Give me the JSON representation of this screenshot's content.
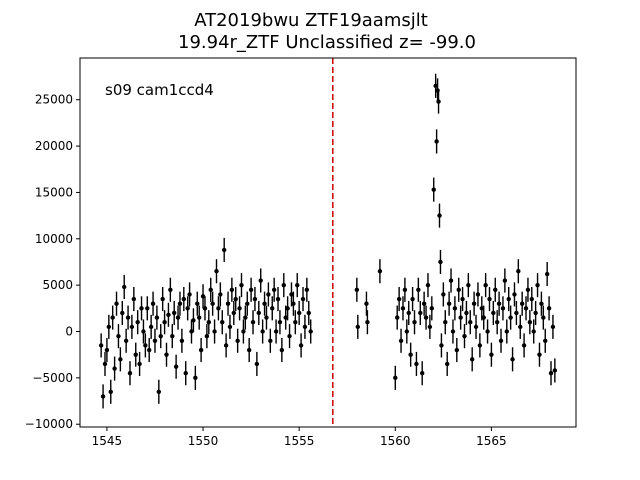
{
  "chart_data": {
    "type": "scatter",
    "title": "AT2019bwu  ZTF19aamsjlt",
    "subtitle": "19.94r_ZTF Unclassified z= -99.0",
    "annotation": "s09 cam1ccd4",
    "xlabel": "",
    "ylabel": "",
    "xlim": [
      1543.6,
      1569.4
    ],
    "ylim": [
      -10300,
      29500
    ],
    "xticks": [
      1545,
      1550,
      1555,
      1560,
      1565
    ],
    "xtick_labels": [
      "1545",
      "1550",
      "1555",
      "1560",
      "1565"
    ],
    "yticks": [
      -10000,
      -5000,
      0,
      5000,
      10000,
      15000,
      20000,
      25000
    ],
    "ytick_labels": [
      "−10000",
      "−5000",
      "0",
      "5000",
      "10000",
      "15000",
      "20000",
      "25000"
    ],
    "vline": {
      "x": 1556.75,
      "color": "#cc0000",
      "style": "dashed"
    },
    "grid": false,
    "colors": {
      "points": "#000000",
      "vline": "#cc0000"
    },
    "series": [
      {
        "x": [
          1544.7,
          1544.8,
          1544.9,
          1545.0,
          1545.1,
          1545.2,
          1545.3,
          1545.4,
          1545.5,
          1545.6,
          1545.7,
          1545.8,
          1545.9,
          1546.0,
          1546.1,
          1546.2,
          1546.3,
          1546.4,
          1546.5,
          1546.6,
          1546.7,
          1546.8,
          1546.9,
          1547.0,
          1547.1,
          1547.2,
          1547.3,
          1547.4,
          1547.5,
          1547.6,
          1547.7,
          1547.8,
          1547.9,
          1548.0,
          1548.1,
          1548.2,
          1548.3,
          1548.4,
          1548.5,
          1548.6,
          1548.7,
          1548.8,
          1548.9,
          1549.0,
          1549.1,
          1549.2,
          1549.3,
          1549.4,
          1549.5,
          1549.6,
          1549.7,
          1549.8,
          1549.9,
          1550.0,
          1550.1,
          1550.2,
          1550.3,
          1550.4,
          1550.5,
          1550.6,
          1550.7,
          1550.8,
          1550.9,
          1551.0,
          1551.1,
          1551.2,
          1551.3,
          1551.4,
          1551.5,
          1551.6,
          1551.7,
          1551.8,
          1551.9,
          1552.0,
          1552.1,
          1552.2,
          1552.3,
          1552.4,
          1552.5,
          1552.6,
          1552.7,
          1552.8,
          1552.9,
          1553.0,
          1553.1,
          1553.2,
          1553.3,
          1553.4,
          1553.5,
          1553.6,
          1553.7,
          1553.8,
          1553.9,
          1554.0,
          1554.1,
          1554.2,
          1554.3,
          1554.4,
          1554.5,
          1554.6,
          1554.7,
          1554.8,
          1554.9,
          1555.0,
          1555.1,
          1555.2,
          1555.3,
          1555.4,
          1555.5,
          1555.6
        ],
        "y": [
          -1500,
          -7000,
          -3500,
          -2000,
          500,
          -6500,
          1500,
          -4000,
          3000,
          -500,
          -3000,
          2000,
          4800,
          -1000,
          1500,
          -4500,
          500,
          3500,
          -2500,
          1000,
          -3500,
          2500,
          0,
          -1500,
          2500,
          -2000,
          500,
          3000,
          -1000,
          1500,
          -6500,
          -500,
          3500,
          1000,
          -2500,
          1800,
          4500,
          -500,
          2000,
          -3800,
          1500,
          3000,
          -1000,
          3500,
          -4500,
          2500,
          4000,
          0,
          1200,
          -5000,
          3000,
          1500,
          -2000,
          3800,
          2500,
          -500,
          1000,
          4500,
          3000,
          0,
          6500,
          2500,
          4000,
          1000,
          8800,
          -1500,
          3000,
          500,
          4500,
          2000,
          3500,
          -1000,
          2500,
          5000,
          0,
          1500,
          3000,
          -2000,
          4500,
          1000,
          3500,
          -3500,
          2000,
          5500,
          0,
          3000,
          1500,
          4000,
          -1000,
          2500,
          4500,
          0,
          3500,
          1000,
          -2000,
          5000,
          1500,
          2500,
          -500,
          4000,
          3000,
          1000,
          5000,
          2000,
          -1500,
          3500,
          500,
          4500,
          2000,
          0
        ],
        "yerr": [
          1300,
          1300,
          1300,
          1300,
          1300,
          1300,
          1300,
          1300,
          1300,
          1300,
          1300,
          1300,
          1300,
          1300,
          1300,
          1300,
          1300,
          1300,
          1300,
          1300,
          1300,
          1300,
          1300,
          1300,
          1300,
          1300,
          1300,
          1300,
          1300,
          1300,
          1300,
          1300,
          1300,
          1300,
          1300,
          1300,
          1300,
          1300,
          1300,
          1300,
          1300,
          1300,
          1300,
          1300,
          1300,
          1300,
          1300,
          1300,
          1300,
          1300,
          1300,
          1300,
          1300,
          1300,
          1300,
          1300,
          1300,
          1300,
          1300,
          1300,
          1300,
          1300,
          1300,
          1300,
          1300,
          1300,
          1300,
          1300,
          1300,
          1300,
          1300,
          1300,
          1300,
          1300,
          1300,
          1300,
          1300,
          1300,
          1300,
          1300,
          1300,
          1300,
          1300,
          1300,
          1300,
          1300,
          1300,
          1300,
          1300,
          1300,
          1300,
          1300,
          1300,
          1300,
          1300,
          1300,
          1300,
          1300,
          1300,
          1300,
          1300,
          1300,
          1300,
          1300,
          1300,
          1300,
          1300,
          1300,
          1300,
          1300
        ]
      },
      {
        "x": [
          1558.0,
          1558.05,
          1558.5,
          1558.55,
          1559.2,
          1560.0,
          1560.1,
          1560.2,
          1560.3,
          1560.4,
          1560.5,
          1560.6,
          1560.7,
          1560.8,
          1560.9,
          1561.0,
          1561.1,
          1561.2,
          1561.3,
          1561.4,
          1561.5,
          1561.6,
          1561.7,
          1561.8,
          1561.9,
          1562.0,
          1562.1,
          1562.15,
          1562.2,
          1562.25,
          1562.3,
          1562.35,
          1562.4,
          1562.5,
          1562.6,
          1562.7,
          1562.8,
          1562.9,
          1563.0,
          1563.1,
          1563.2,
          1563.3,
          1563.4,
          1563.5,
          1563.6,
          1563.7,
          1563.8,
          1563.9,
          1564.0,
          1564.1,
          1564.2,
          1564.3,
          1564.4,
          1564.5,
          1564.6,
          1564.7,
          1564.8,
          1564.9,
          1565.0,
          1565.1,
          1565.2,
          1565.3,
          1565.4,
          1565.5,
          1565.6,
          1565.7,
          1565.8,
          1565.9,
          1566.0,
          1566.1,
          1566.2,
          1566.3,
          1566.4,
          1566.5,
          1566.6,
          1566.7,
          1566.8,
          1566.9,
          1567.0,
          1567.1,
          1567.2,
          1567.3,
          1567.4,
          1567.5,
          1567.6,
          1567.7,
          1567.8,
          1567.9,
          1568.0,
          1568.1,
          1568.2,
          1568.3
        ],
        "y": [
          4500,
          500,
          3000,
          1000,
          6500,
          -5000,
          1500,
          3500,
          -1000,
          2500,
          4500,
          0,
          2000,
          -2500,
          3500,
          1000,
          -3500,
          4500,
          2000,
          -4500,
          3000,
          1500,
          5000,
          500,
          2500,
          15300,
          26500,
          20500,
          26000,
          24800,
          12500,
          7500,
          -1500,
          4000,
          1000,
          -3500,
          3000,
          5500,
          0,
          2500,
          -2000,
          4500,
          1500,
          3500,
          -500,
          2000,
          5000,
          1000,
          -3000,
          3000,
          500,
          4000,
          -1500,
          2500,
          1500,
          5000,
          0,
          3500,
          -2500,
          2000,
          4500,
          1000,
          3000,
          -1000,
          2500,
          5500,
          0,
          3500,
          1500,
          -3000,
          4000,
          2000,
          6500,
          500,
          3000,
          -1500,
          2500,
          4500,
          1000,
          3500,
          0,
          2000,
          5000,
          -2500,
          3000,
          1500,
          -1000,
          6200,
          2500,
          -4500,
          500,
          -4200
        ],
        "yerr": [
          1300,
          1300,
          1300,
          1300,
          1300,
          1300,
          1300,
          1300,
          1300,
          1300,
          1300,
          1300,
          1300,
          1300,
          1300,
          1300,
          1300,
          1300,
          1300,
          1300,
          1300,
          1300,
          1300,
          1300,
          1300,
          1300,
          1300,
          1300,
          1300,
          1300,
          1300,
          1300,
          1300,
          1300,
          1300,
          1300,
          1300,
          1300,
          1300,
          1300,
          1300,
          1300,
          1300,
          1300,
          1300,
          1300,
          1300,
          1300,
          1300,
          1300,
          1300,
          1300,
          1300,
          1300,
          1300,
          1300,
          1300,
          1300,
          1300,
          1300,
          1300,
          1300,
          1300,
          1300,
          1300,
          1300,
          1300,
          1300,
          1300,
          1300,
          1300,
          1300,
          1300,
          1300,
          1300,
          1300,
          1300,
          1300,
          1300,
          1300,
          1300,
          1300,
          1300,
          1300,
          1300,
          1300,
          1300,
          1300,
          1300,
          1300,
          1300,
          1300
        ]
      }
    ]
  }
}
